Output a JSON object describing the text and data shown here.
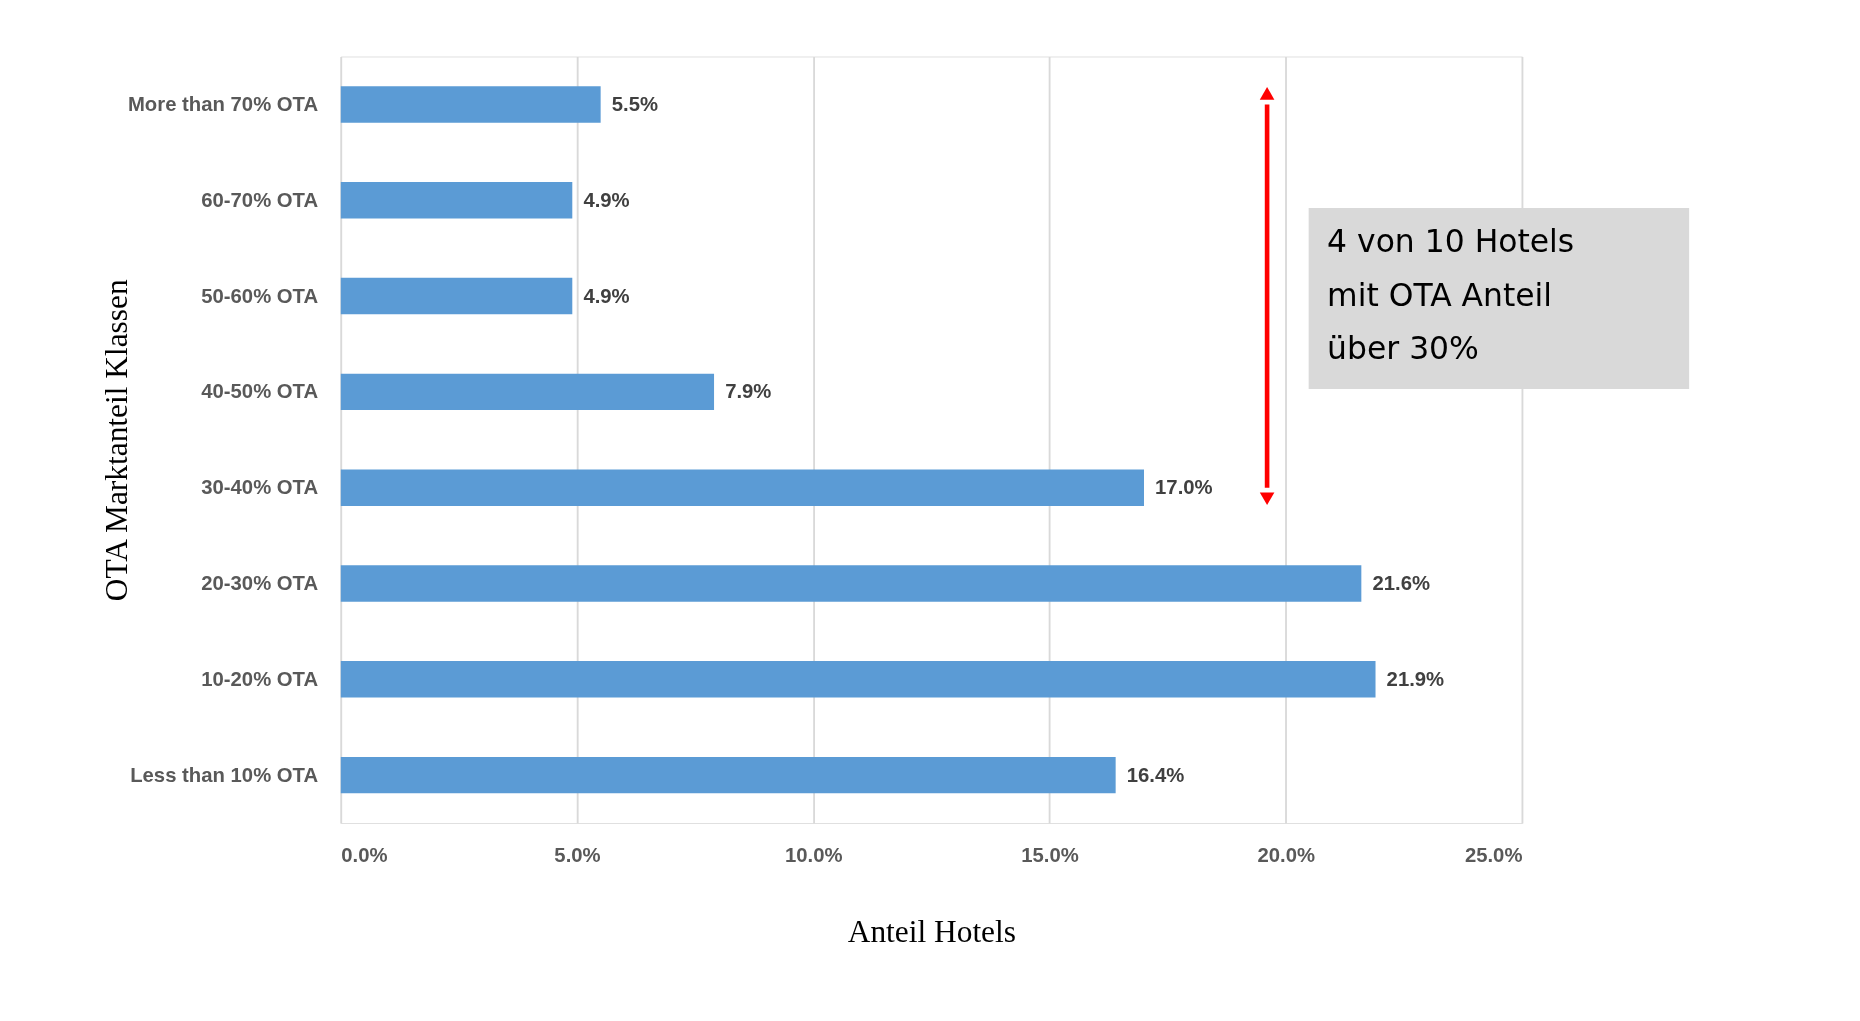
{
  "chart_data": {
    "type": "bar",
    "orientation": "horizontal",
    "xlabel": "Anteil Hotels",
    "ylabel": "OTA Marktanteil Klassen",
    "categories": [
      "More than 70% OTA",
      "60-70% OTA",
      "50-60% OTA",
      "40-50% OTA",
      "30-40% OTA",
      "20-30% OTA",
      "10-20% OTA",
      "Less than 10% OTA"
    ],
    "values": [
      5.5,
      4.9,
      4.9,
      7.9,
      17.0,
      21.6,
      21.9,
      16.4
    ],
    "value_labels": [
      "5.5%",
      "4.9%",
      "4.9%",
      "7.9%",
      "17.0%",
      "21.6%",
      "21.9%",
      "16.4%"
    ],
    "color": "#5b9bd5",
    "xlim": [
      0,
      25
    ],
    "xticks": [
      {
        "value": 0,
        "label": "0.0%"
      },
      {
        "value": 5,
        "label": "5.0%"
      },
      {
        "value": 10,
        "label": "10.0%"
      },
      {
        "value": 15,
        "label": "15.0%"
      },
      {
        "value": 20,
        "label": "20.0%"
      },
      {
        "value": 25,
        "label": "25.0%"
      }
    ],
    "grid": "x",
    "annotations": [
      "4 von 10 Hotels\nmit OTA Anteil\nüber 30%"
    ]
  }
}
